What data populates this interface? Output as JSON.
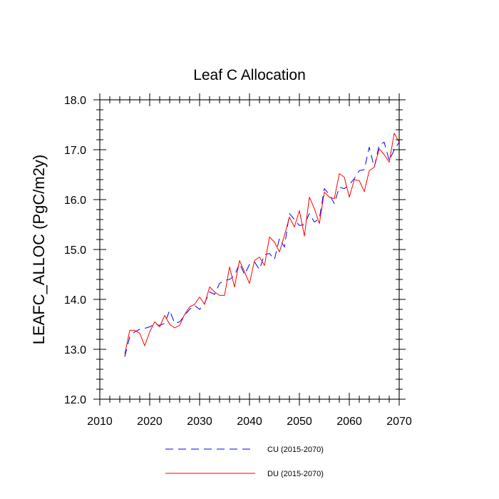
{
  "chart_data": {
    "type": "line",
    "title": "Leaf C Allocation",
    "xlabel": "",
    "ylabel": "LEAFC_ALLOC  (PgC/m2y)",
    "xlim": [
      2010,
      2070
    ],
    "ylim": [
      12.0,
      18.0
    ],
    "xticks": [
      2010,
      2020,
      2030,
      2040,
      2050,
      2060,
      2070
    ],
    "xtick_labels": [
      "2010",
      "2020",
      "2030",
      "2040",
      "2050",
      "2060",
      "2070"
    ],
    "yticks": [
      12.0,
      13.0,
      14.0,
      15.0,
      16.0,
      17.0,
      18.0
    ],
    "ytick_labels": [
      "12.0",
      "13.0",
      "14.0",
      "15.0",
      "16.0",
      "17.0",
      "18.0"
    ],
    "x": [
      2015,
      2016,
      2017,
      2018,
      2019,
      2020,
      2021,
      2022,
      2023,
      2024,
      2025,
      2026,
      2027,
      2028,
      2029,
      2030,
      2031,
      2032,
      2033,
      2034,
      2035,
      2036,
      2037,
      2038,
      2039,
      2040,
      2041,
      2042,
      2043,
      2044,
      2045,
      2046,
      2047,
      2048,
      2049,
      2050,
      2051,
      2052,
      2053,
      2054,
      2055,
      2056,
      2057,
      2058,
      2059,
      2060,
      2061,
      2062,
      2063,
      2064,
      2065,
      2066,
      2067,
      2068,
      2069,
      2070
    ],
    "series": [
      {
        "name": "CU (2015-2070)",
        "color": "#0000ff",
        "style": "dashed",
        "values": [
          12.85,
          13.25,
          13.35,
          13.4,
          13.42,
          13.45,
          13.5,
          13.48,
          13.52,
          13.78,
          13.52,
          13.55,
          13.68,
          13.8,
          13.88,
          13.8,
          13.92,
          14.15,
          14.1,
          14.32,
          14.38,
          14.4,
          14.48,
          14.72,
          14.5,
          14.7,
          14.75,
          14.6,
          14.9,
          14.92,
          14.8,
          15.22,
          15.05,
          15.72,
          15.6,
          15.48,
          15.5,
          15.72,
          15.55,
          15.62,
          16.22,
          16.1,
          15.92,
          16.25,
          16.22,
          16.3,
          16.42,
          16.58,
          16.6,
          17.05,
          16.65,
          17.1,
          17.15,
          16.78,
          17.0,
          17.15
        ]
      },
      {
        "name": "DU (2015-2070)",
        "color": "#ff0000",
        "style": "solid",
        "values": [
          12.9,
          13.38,
          13.38,
          13.32,
          13.07,
          13.35,
          13.55,
          13.45,
          13.68,
          13.5,
          13.43,
          13.48,
          13.7,
          13.85,
          13.9,
          14.05,
          13.9,
          14.25,
          14.15,
          14.08,
          14.08,
          14.65,
          14.25,
          14.78,
          14.55,
          14.32,
          14.78,
          14.85,
          14.68,
          15.25,
          15.15,
          14.95,
          15.28,
          15.65,
          15.45,
          15.78,
          15.27,
          16.05,
          15.82,
          15.52,
          16.15,
          16.05,
          16.02,
          16.52,
          16.45,
          16.05,
          16.4,
          16.38,
          16.16,
          16.58,
          16.65,
          17.02,
          16.9,
          16.75,
          17.33,
          17.15
        ]
      }
    ],
    "legend_position": "bottom-center"
  }
}
